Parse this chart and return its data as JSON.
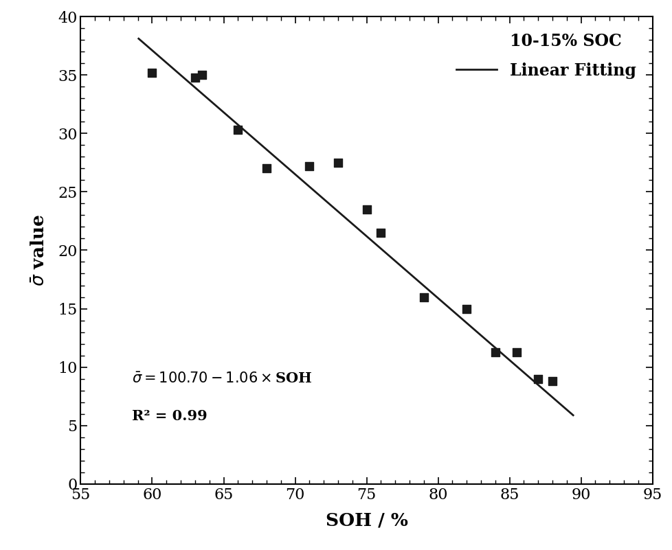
{
  "scatter_x": [
    60.0,
    63.0,
    63.5,
    66.0,
    68.0,
    71.0,
    73.0,
    75.0,
    76.0,
    79.0,
    82.0,
    84.0,
    85.5,
    87.0,
    88.0
  ],
  "scatter_y": [
    35.2,
    34.8,
    35.0,
    30.3,
    27.0,
    27.2,
    27.5,
    23.5,
    21.5,
    16.0,
    15.0,
    11.3,
    11.3,
    9.0,
    8.8
  ],
  "line_x": [
    59.0,
    89.5
  ],
  "intercept": 100.7,
  "slope": -1.06,
  "xlim": [
    55,
    95
  ],
  "ylim": [
    0,
    40
  ],
  "xticks": [
    55,
    60,
    65,
    70,
    75,
    80,
    85,
    90,
    95
  ],
  "yticks": [
    0,
    5,
    10,
    15,
    20,
    25,
    30,
    35,
    40
  ],
  "xlabel": "SOH / %",
  "legend_label1": "10-15% SOC",
  "legend_label2": "Linear Fitting",
  "r_squared": "R² = 0.99",
  "line_color": "#1a1a1a",
  "scatter_color": "#1a1a1a",
  "background_color": "#ffffff",
  "fontsize_axis_label": 19,
  "fontsize_ticks": 16,
  "fontsize_legend": 17,
  "fontsize_equation": 15,
  "marker_size": 65
}
